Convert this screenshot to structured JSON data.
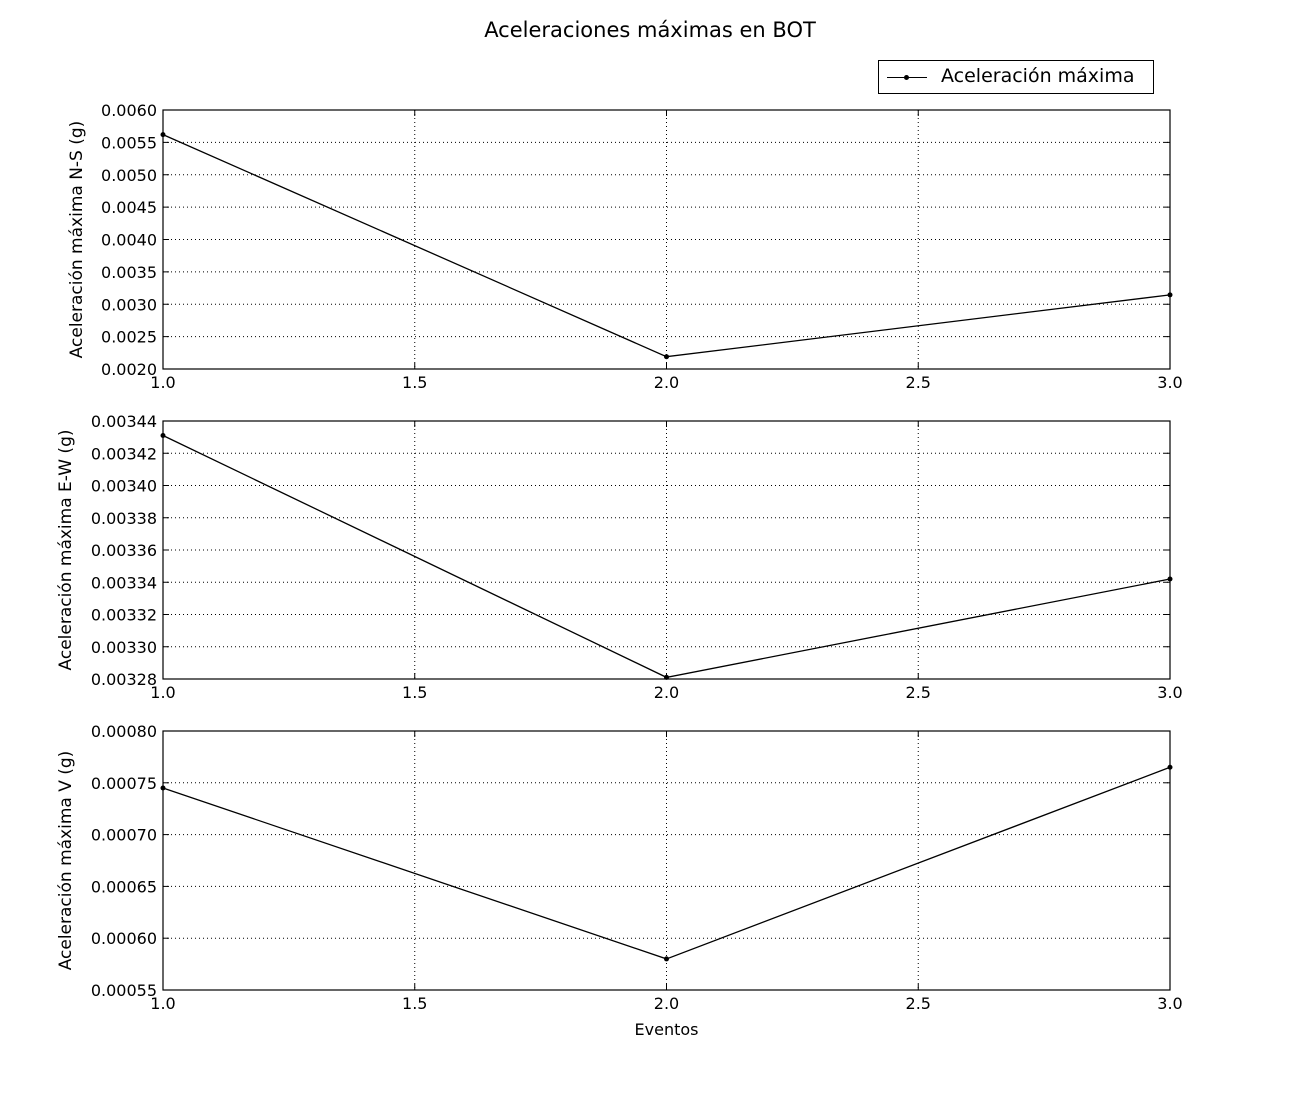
{
  "figure": {
    "title": "Aceleraciones máximas en BOT",
    "legend": {
      "label": "Aceleración máxima",
      "placement": "top-right"
    }
  },
  "colors": {
    "line": "#000000",
    "grid": "#000000",
    "background": "#ffffff"
  },
  "chart_data": [
    {
      "type": "line",
      "x": [
        1.0,
        2.0,
        3.0
      ],
      "series": [
        {
          "name": "Aceleración máxima",
          "values": [
            0.00562,
            0.00219,
            0.003145
          ]
        }
      ],
      "xlabel": "",
      "ylabel": "Aceleración máxima N-S (g)",
      "xlim": [
        1.0,
        3.0
      ],
      "ylim": [
        0.002,
        0.006
      ],
      "xticks": [
        "1.0",
        "1.5",
        "2.0",
        "2.5",
        "3.0"
      ],
      "yticks": [
        "0.0020",
        "0.0025",
        "0.0030",
        "0.0035",
        "0.0040",
        "0.0045",
        "0.0050",
        "0.0055",
        "0.0060"
      ],
      "grid": true
    },
    {
      "type": "line",
      "x": [
        1.0,
        2.0,
        3.0
      ],
      "series": [
        {
          "name": "Aceleración máxima",
          "values": [
            0.003431,
            0.003281,
            0.003342
          ]
        }
      ],
      "xlabel": "",
      "ylabel": "Aceleración máxima E-W (g)",
      "xlim": [
        1.0,
        3.0
      ],
      "ylim": [
        0.00328,
        0.00344
      ],
      "xticks": [
        "1.0",
        "1.5",
        "2.0",
        "2.5",
        "3.0"
      ],
      "yticks": [
        "0.00328",
        "0.00330",
        "0.00332",
        "0.00334",
        "0.00336",
        "0.00338",
        "0.00340",
        "0.00342",
        "0.00344"
      ],
      "grid": true
    },
    {
      "type": "line",
      "x": [
        1.0,
        2.0,
        3.0
      ],
      "series": [
        {
          "name": "Aceleración máxima",
          "values": [
            0.000745,
            0.00058,
            0.000765
          ]
        }
      ],
      "xlabel": "Eventos",
      "ylabel": "Aceleración máxima V (g)",
      "xlim": [
        1.0,
        3.0
      ],
      "ylim": [
        0.00055,
        0.0008
      ],
      "xticks": [
        "1.0",
        "1.5",
        "2.0",
        "2.5",
        "3.0"
      ],
      "yticks": [
        "0.00055",
        "0.00060",
        "0.00065",
        "0.00070",
        "0.00075",
        "0.00080"
      ],
      "grid": true
    }
  ]
}
